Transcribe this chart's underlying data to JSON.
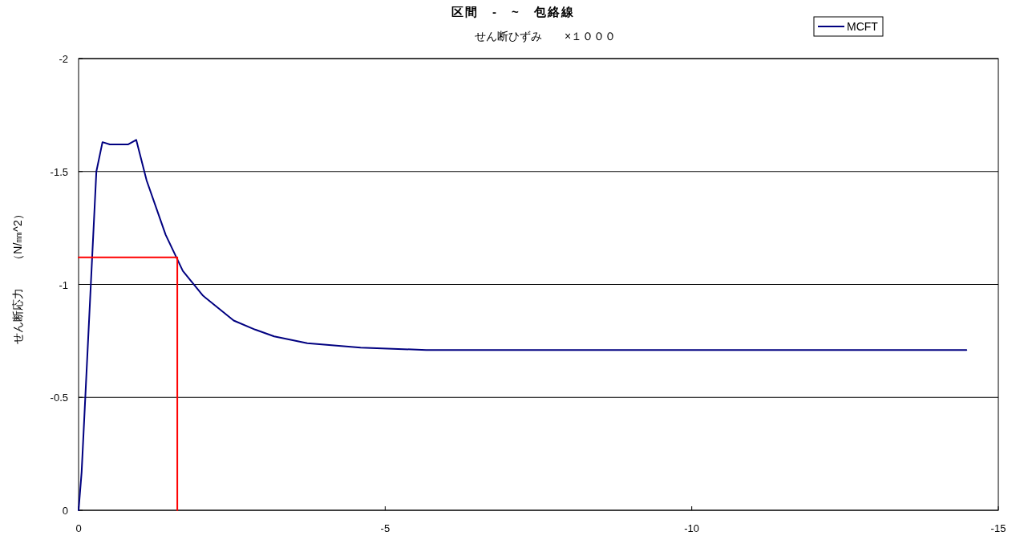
{
  "chart_data": {
    "type": "line",
    "title": "区間　-　~　包絡線",
    "xlabel": "せん断ひずみ　　×１０００",
    "ylabel": "せん断応力　　（N/㎜^2）",
    "xlim": [
      0,
      -15
    ],
    "xticks": [
      0,
      -5,
      -10,
      -15
    ],
    "ylim": [
      0,
      -2
    ],
    "yticks": [
      0,
      -0.5,
      -1,
      -1.5,
      -2
    ],
    "grid": "y",
    "legend": "top right",
    "series": [
      {
        "name": "MCFT",
        "color": "#000080",
        "x": [
          0,
          -0.05,
          -0.29,
          -0.39,
          -0.51,
          -0.66,
          -0.81,
          -0.94,
          -1.11,
          -1.42,
          -1.7,
          -2.03,
          -2.53,
          -2.88,
          -3.19,
          -3.73,
          -4.6,
          -5.67,
          -6.34,
          -7.12,
          -9.11,
          -9.59,
          -10.14,
          -10.79,
          -11.34,
          -12.03,
          -12.64,
          -13.25,
          -13.9,
          -14.48
        ],
        "values": [
          0,
          -0.17,
          -1.5,
          -1.63,
          -1.62,
          -1.62,
          -1.62,
          -1.64,
          -1.46,
          -1.22,
          -1.06,
          -0.95,
          -0.84,
          -0.8,
          -0.77,
          -0.74,
          -0.72,
          -0.71,
          -0.71,
          -0.71,
          -0.71,
          -0.71,
          -0.71,
          -0.71,
          -0.71,
          -0.71,
          -0.71,
          -0.71,
          -0.71,
          -0.71
        ]
      },
      {
        "color": "#ff0000",
        "x": [
          0,
          -1.61,
          -1.61
        ],
        "values": [
          -1.12,
          -1.12,
          0
        ]
      }
    ]
  }
}
